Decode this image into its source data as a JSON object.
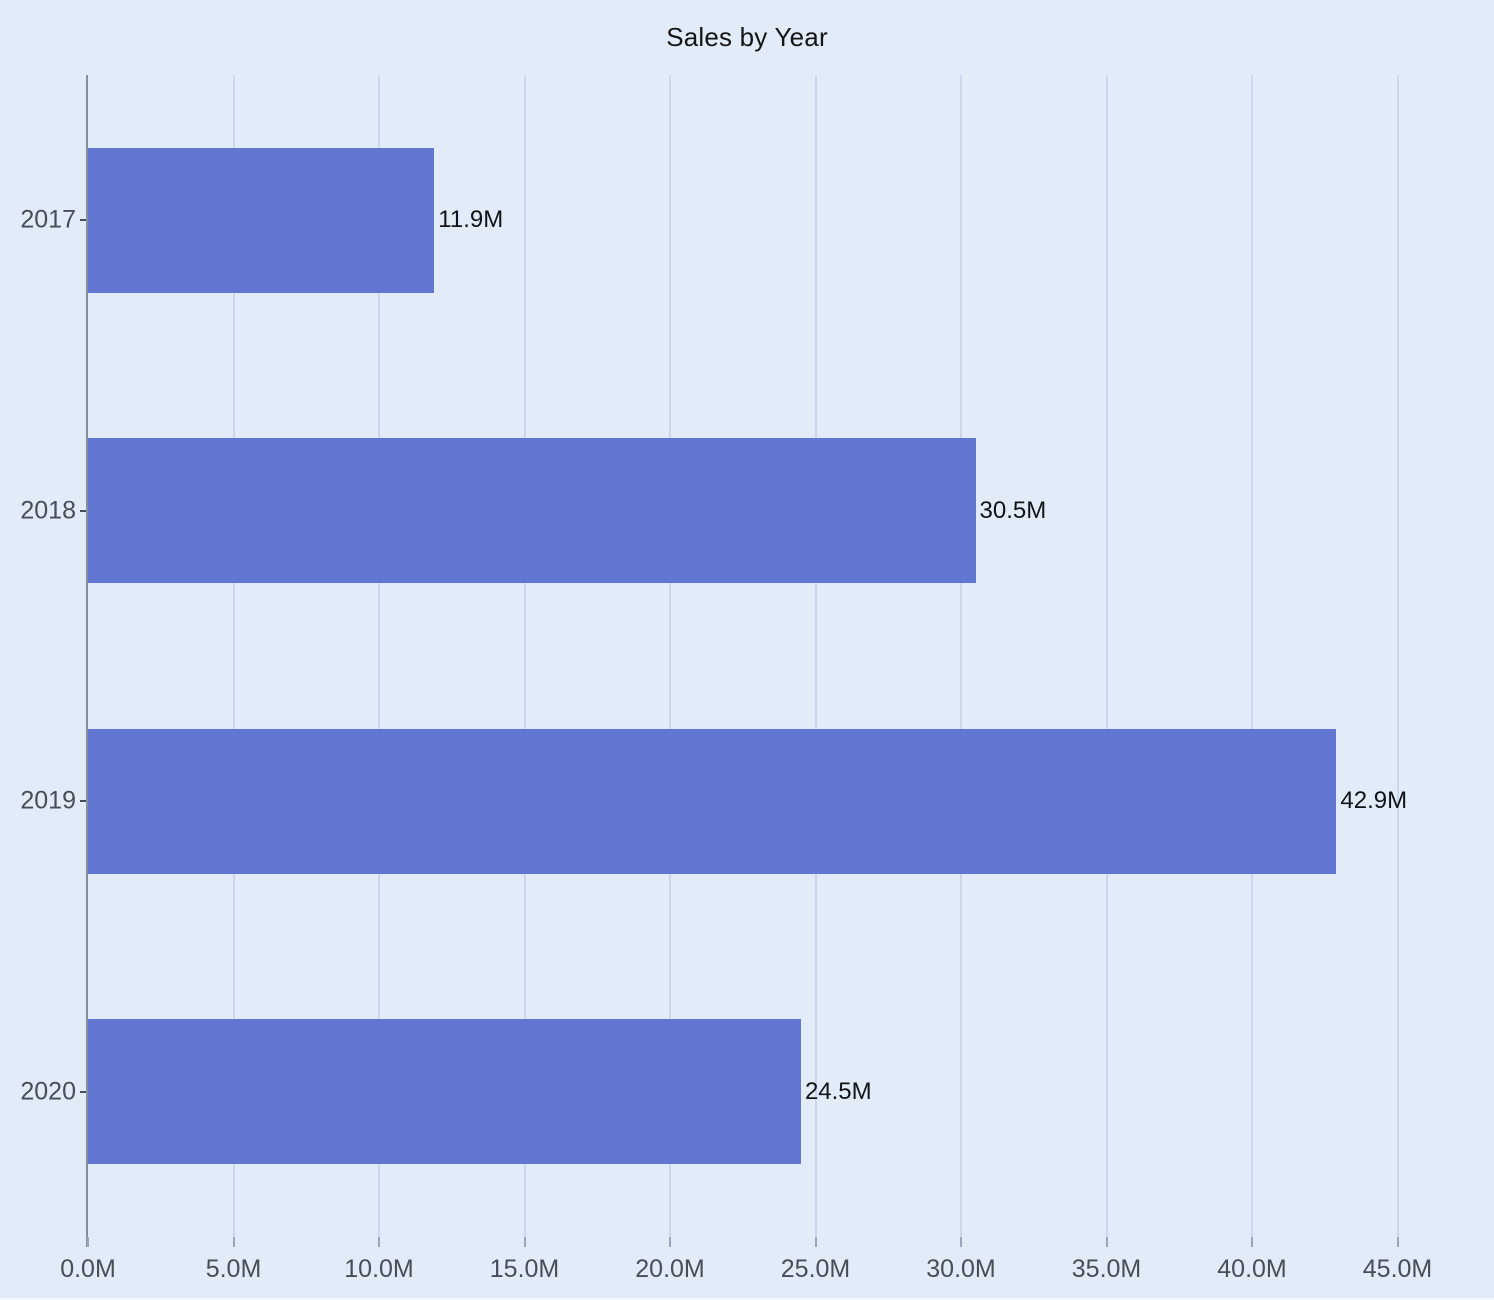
{
  "chart_data": {
    "type": "bar",
    "orientation": "horizontal",
    "title": "Sales by Year",
    "categories": [
      "2017",
      "2018",
      "2019",
      "2020"
    ],
    "values": [
      11.9,
      30.5,
      42.9,
      24.5
    ],
    "value_labels": [
      "11.9M",
      "30.5M",
      "42.9M",
      "24.5M"
    ],
    "x_tick_values": [
      0,
      5,
      10,
      15,
      20,
      25,
      30,
      35,
      40,
      45
    ],
    "x_tick_labels": [
      "0.0M",
      "5.0M",
      "10.0M",
      "15.0M",
      "20.0M",
      "25.0M",
      "30.0M",
      "35.0M",
      "40.0M",
      "45.0M"
    ],
    "xlim": [
      0,
      48.3
    ],
    "unit": "M",
    "grid": "vertical-only",
    "legend": "none",
    "colors": {
      "background": "#e2ecf8",
      "bar": "#6176d0",
      "gridline": "#ccd7ee",
      "axis_line": "#868e99",
      "tick_mark": "#9aa4ba",
      "tick_label": "#474e56",
      "value_label": "#101418",
      "title": "#151515"
    }
  }
}
